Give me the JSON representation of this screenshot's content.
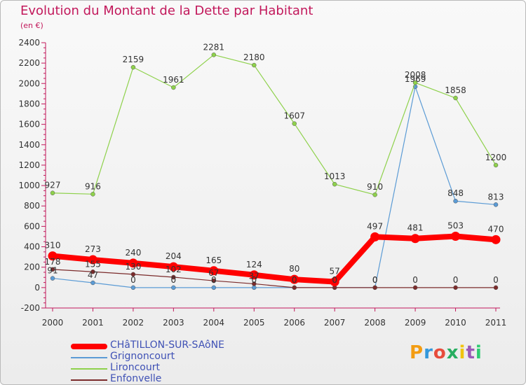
{
  "header": {
    "title": "Evolution du Montant de la Dette par Habitant",
    "unit": "(en €)"
  },
  "logo": {
    "text": "Proxiti",
    "colors": [
      "#f39c12",
      "#3498db",
      "#e74c3c",
      "#27ae60",
      "#f1c40f",
      "#9b59b6",
      "#2ecc71"
    ]
  },
  "chart_data": {
    "type": "line",
    "x": [
      "2000",
      "2001",
      "2002",
      "2003",
      "2004",
      "2005",
      "2006",
      "2007",
      "2008",
      "2009",
      "2010",
      "2011"
    ],
    "ylim": [
      -200,
      2400
    ],
    "yticks": [
      -200,
      0,
      200,
      400,
      600,
      800,
      1000,
      1200,
      1400,
      1600,
      1800,
      2000,
      2200,
      2400
    ],
    "grid": false,
    "legend_position": "bottom-left",
    "series": [
      {
        "name": "CHâTILLON-SUR-SAôNE",
        "color": "#ff0000",
        "width": 8,
        "values": [
          310,
          273,
          240,
          204,
          165,
          124,
          80,
          57,
          497,
          481,
          503,
          470
        ]
      },
      {
        "name": "Grignoncourt",
        "color": "#5b9bd5",
        "width": 1.2,
        "values": [
          91,
          47,
          0,
          0,
          0,
          0,
          0,
          0,
          0,
          1969,
          848,
          813
        ]
      },
      {
        "name": "Lironcourt",
        "color": "#8ed14b",
        "width": 1.2,
        "values": [
          927,
          916,
          2159,
          1961,
          2281,
          2180,
          1607,
          1013,
          910,
          2008,
          1858,
          1200
        ]
      },
      {
        "name": "Enfonvelle",
        "color": "#7b2b2b",
        "width": 1.2,
        "values": [
          178,
          155,
          130,
          102,
          67,
          37,
          0,
          0,
          0,
          0,
          0,
          0
        ]
      }
    ]
  }
}
